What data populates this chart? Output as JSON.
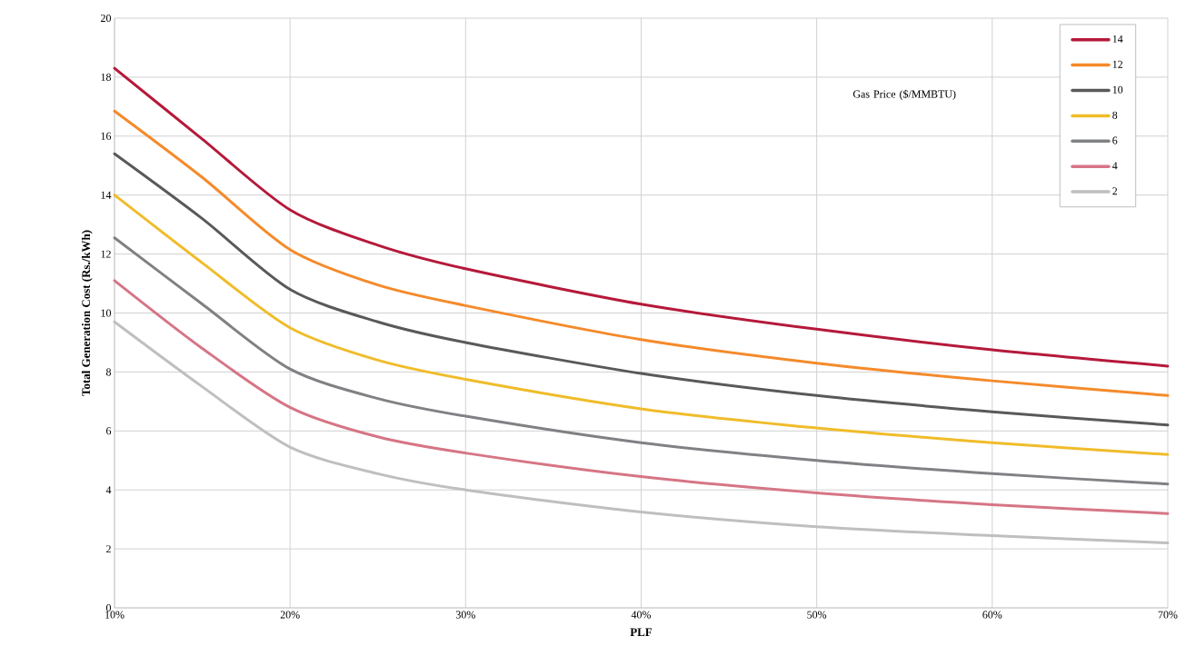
{
  "chart_data": {
    "type": "line",
    "xlabel": "PLF",
    "ylabel": "Total Generation Cost (Rs./kWh)",
    "legend_title": "Gas Price ($/MMBTU)",
    "x": [
      10,
      15,
      20,
      25,
      30,
      40,
      50,
      60,
      70
    ],
    "series": [
      {
        "name": "14",
        "color": "#b5193a",
        "values": [
          18.3,
          15.9,
          13.5,
          12.3,
          11.5,
          10.3,
          9.45,
          8.75,
          8.2
        ]
      },
      {
        "name": "12",
        "color": "#f58a2a",
        "values": [
          16.85,
          14.6,
          12.15,
          10.95,
          10.25,
          9.1,
          8.3,
          7.7,
          7.2
        ]
      },
      {
        "name": "10",
        "color": "#58595b",
        "values": [
          15.4,
          13.2,
          10.8,
          9.7,
          9.0,
          7.95,
          7.2,
          6.65,
          6.2
        ]
      },
      {
        "name": "8",
        "color": "#f0bc2a",
        "values": [
          14.0,
          11.7,
          9.5,
          8.4,
          7.75,
          6.75,
          6.1,
          5.6,
          5.2
        ]
      },
      {
        "name": "6",
        "color": "#808184",
        "values": [
          12.55,
          10.3,
          8.1,
          7.1,
          6.5,
          5.6,
          5.0,
          4.55,
          4.2
        ]
      },
      {
        "name": "4",
        "color": "#d67585",
        "values": [
          11.1,
          8.8,
          6.8,
          5.8,
          5.25,
          4.45,
          3.9,
          3.5,
          3.2
        ]
      },
      {
        "name": "2",
        "color": "#bfbfc1",
        "values": [
          9.7,
          7.5,
          5.45,
          4.55,
          4.0,
          3.25,
          2.75,
          2.45,
          2.2
        ]
      }
    ],
    "xlim": [
      10,
      70
    ],
    "ylim": [
      0,
      20
    ],
    "xticks": [
      {
        "value": 10,
        "label": "10%"
      },
      {
        "value": 20,
        "label": "20%"
      },
      {
        "value": 30,
        "label": "30%"
      },
      {
        "value": 40,
        "label": "40%"
      },
      {
        "value": 50,
        "label": "50%"
      },
      {
        "value": 60,
        "label": "60%"
      },
      {
        "value": 70,
        "label": "70%"
      }
    ],
    "yticks": [
      0,
      2,
      4,
      6,
      8,
      10,
      12,
      14,
      16,
      18,
      20
    ],
    "grid": true,
    "legend": "top right",
    "marker": "none",
    "line_style": "solid"
  }
}
